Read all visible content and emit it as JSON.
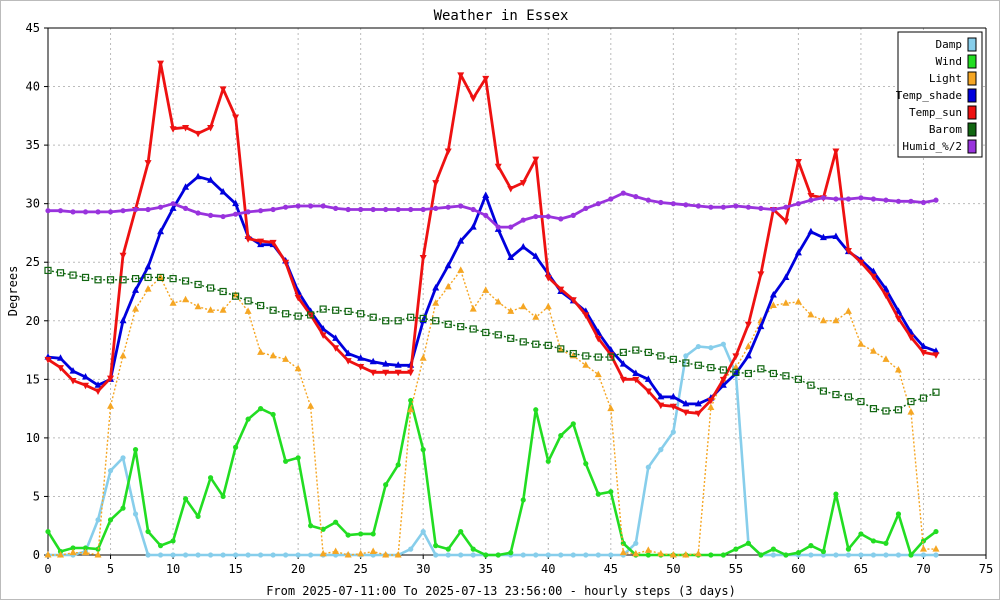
{
  "chart_data": {
    "type": "line",
    "title": "Weather in Essex",
    "xlabel": "From 2025-07-11:00 To 2025-07-13 23:56:00 - hourly steps (3 days)",
    "ylabel": "Degrees",
    "xlim": [
      0,
      75
    ],
    "ylim": [
      0,
      45
    ],
    "x_ticks": [
      0,
      5,
      10,
      15,
      20,
      25,
      30,
      35,
      40,
      45,
      50,
      55,
      60,
      65,
      70,
      75
    ],
    "y_ticks": [
      0,
      5,
      10,
      15,
      20,
      25,
      30,
      35,
      40,
      45
    ],
    "grid": true,
    "legend_position": "top-right",
    "x": [
      0,
      1,
      2,
      3,
      4,
      5,
      6,
      7,
      8,
      9,
      10,
      11,
      12,
      13,
      14,
      15,
      16,
      17,
      18,
      19,
      20,
      21,
      22,
      23,
      24,
      25,
      26,
      27,
      28,
      29,
      30,
      31,
      32,
      33,
      34,
      35,
      36,
      37,
      38,
      39,
      40,
      41,
      42,
      43,
      44,
      45,
      46,
      47,
      48,
      49,
      50,
      51,
      52,
      53,
      54,
      55,
      56,
      57,
      58,
      59,
      60,
      61,
      62,
      63,
      64,
      65,
      66,
      67,
      68,
      69,
      70,
      71
    ],
    "series": [
      {
        "name": "Damp",
        "color": "#87ceeb",
        "marker": "circle",
        "values": [
          0,
          0,
          0,
          0.3,
          3,
          7.2,
          8.3,
          3.5,
          0,
          0,
          0,
          0,
          0,
          0,
          0,
          0,
          0,
          0,
          0,
          0,
          0,
          0,
          0,
          0,
          0,
          0,
          0,
          0,
          0,
          0.5,
          2,
          0,
          0,
          0,
          0,
          0,
          0,
          0,
          0,
          0,
          0,
          0,
          0,
          0,
          0,
          0,
          0,
          1,
          7.5,
          9,
          10.5,
          17,
          17.8,
          17.7,
          18,
          15.5,
          1,
          0,
          0,
          0,
          0,
          0,
          0,
          0,
          0,
          0,
          0,
          0,
          0,
          0,
          0,
          0
        ]
      },
      {
        "name": "Wind",
        "color": "#22dd22",
        "marker": "circle",
        "values": [
          2,
          0.3,
          0.6,
          0.6,
          0.5,
          3,
          4,
          9,
          2,
          0.8,
          1.2,
          4.8,
          3.3,
          6.6,
          5,
          9.2,
          11.6,
          12.5,
          12,
          8,
          8.3,
          2.5,
          2.2,
          2.8,
          1.7,
          1.8,
          1.8,
          6,
          7.7,
          13.2,
          9,
          0.8,
          0.5,
          2,
          0.5,
          0,
          0,
          0.2,
          4.7,
          12.4,
          8,
          10.2,
          11.2,
          7.8,
          5.2,
          5.4,
          1,
          0,
          0,
          0,
          0,
          0,
          0,
          0,
          0,
          0.5,
          1,
          0,
          0.5,
          0,
          0.2,
          0.8,
          0.3,
          5.2,
          0.5,
          1.8,
          1.2,
          1,
          3.5,
          0,
          1.2,
          2
        ]
      },
      {
        "name": "Light",
        "color": "#f5a623",
        "marker": "triangle",
        "values": [
          0,
          0,
          0.2,
          0.2,
          0,
          12.7,
          17,
          21,
          22.7,
          23.7,
          21.5,
          21.8,
          21.2,
          20.9,
          20.9,
          22.2,
          20.8,
          17.3,
          17,
          16.7,
          15.9,
          12.7,
          0.1,
          0.3,
          0,
          0.1,
          0.3,
          0,
          0,
          12.4,
          16.8,
          21.5,
          22.9,
          24.3,
          21,
          22.6,
          21.6,
          20.8,
          21.2,
          20.3,
          21.2,
          17.5,
          17,
          16.2,
          15.4,
          12.5,
          0.2,
          0.1,
          0.4,
          0.1,
          0,
          0,
          0.1,
          12.6,
          15,
          16,
          17.8,
          20,
          21.3,
          21.5,
          21.6,
          20.5,
          20,
          20,
          20.8,
          18,
          17.4,
          16.7,
          15.8,
          12.2,
          0.5,
          0.5
        ]
      },
      {
        "name": "Temp_shade",
        "color": "#0000dd",
        "marker": "triangle",
        "values": [
          16.9,
          16.8,
          15.7,
          15.2,
          14.5,
          15,
          20,
          22.6,
          24.6,
          27.6,
          29.6,
          31.4,
          32.3,
          32,
          31,
          30,
          27.2,
          26.5,
          26.5,
          25.1,
          22.5,
          20.8,
          19.3,
          18.5,
          17.2,
          16.8,
          16.5,
          16.3,
          16.2,
          16.2,
          20,
          22.8,
          24.7,
          26.8,
          28,
          30.7,
          27.8,
          25.4,
          26.3,
          25.5,
          24,
          22.5,
          21.7,
          20.8,
          19,
          17.5,
          16.3,
          15.5,
          15,
          13.5,
          13.5,
          12.9,
          12.9,
          13.4,
          14.5,
          15.5,
          17,
          19.5,
          22.2,
          23.7,
          25.8,
          27.6,
          27.1,
          27.2,
          25.9,
          25.2,
          24.2,
          22.7,
          20.8,
          19,
          17.8,
          17.4
        ]
      },
      {
        "name": "Temp_sun",
        "color": "#ee1111",
        "marker": "triangle-down",
        "values": [
          16.7,
          16,
          14.9,
          14.5,
          14,
          15.1,
          25.6,
          29.5,
          33.5,
          42,
          36.4,
          36.5,
          36,
          36.5,
          39.8,
          37.4,
          27,
          26.8,
          26.7,
          25,
          22,
          20.5,
          18.8,
          17.7,
          16.6,
          16.1,
          15.6,
          15.6,
          15.6,
          15.6,
          25.4,
          31.8,
          34.5,
          41,
          39,
          40.7,
          33.2,
          31.3,
          31.8,
          33.8,
          23.7,
          22.7,
          21.8,
          20.5,
          18.5,
          17.1,
          15,
          15,
          14,
          12.8,
          12.7,
          12.2,
          12.1,
          13.2,
          15,
          17,
          19.7,
          24,
          29.5,
          28.5,
          33.6,
          30.7,
          30.5,
          34.5,
          26,
          25,
          23.8,
          22.2,
          20.2,
          18.6,
          17.3,
          17.1
        ]
      },
      {
        "name": "Barom",
        "color": "#116611",
        "marker": "square",
        "values": [
          24.3,
          24.1,
          23.9,
          23.7,
          23.5,
          23.5,
          23.5,
          23.6,
          23.7,
          23.7,
          23.6,
          23.4,
          23.1,
          22.8,
          22.5,
          22.1,
          21.7,
          21.3,
          20.9,
          20.6,
          20.4,
          20.5,
          21,
          20.9,
          20.8,
          20.6,
          20.3,
          20,
          20,
          20.3,
          20.2,
          20,
          19.7,
          19.5,
          19.3,
          19,
          18.8,
          18.5,
          18.2,
          18,
          17.9,
          17.6,
          17.2,
          17,
          16.9,
          16.9,
          17.3,
          17.5,
          17.3,
          17,
          16.7,
          16.4,
          16.2,
          16,
          15.8,
          15.6,
          15.5,
          15.9,
          15.5,
          15.3,
          15,
          14.5,
          14,
          13.7,
          13.5,
          13.1,
          12.5,
          12.3,
          12.4,
          13.1,
          13.4,
          13.9
        ]
      },
      {
        "name": "Humid_%/2",
        "color": "#9933dd",
        "marker": "circle",
        "values": [
          29.4,
          29.4,
          29.3,
          29.3,
          29.3,
          29.3,
          29.4,
          29.5,
          29.5,
          29.7,
          30,
          29.6,
          29.2,
          29,
          28.9,
          29.1,
          29.3,
          29.4,
          29.5,
          29.7,
          29.8,
          29.8,
          29.8,
          29.6,
          29.5,
          29.5,
          29.5,
          29.5,
          29.5,
          29.5,
          29.5,
          29.6,
          29.7,
          29.8,
          29.5,
          29,
          28,
          28,
          28.6,
          28.9,
          28.9,
          28.7,
          29,
          29.6,
          30,
          30.4,
          30.9,
          30.6,
          30.3,
          30.1,
          30,
          29.9,
          29.8,
          29.7,
          29.7,
          29.8,
          29.7,
          29.6,
          29.5,
          29.7,
          30,
          30.3,
          30.5,
          30.4,
          30.4,
          30.5,
          30.4,
          30.3,
          30.2,
          30.2,
          30.1,
          30.3
        ]
      }
    ]
  }
}
